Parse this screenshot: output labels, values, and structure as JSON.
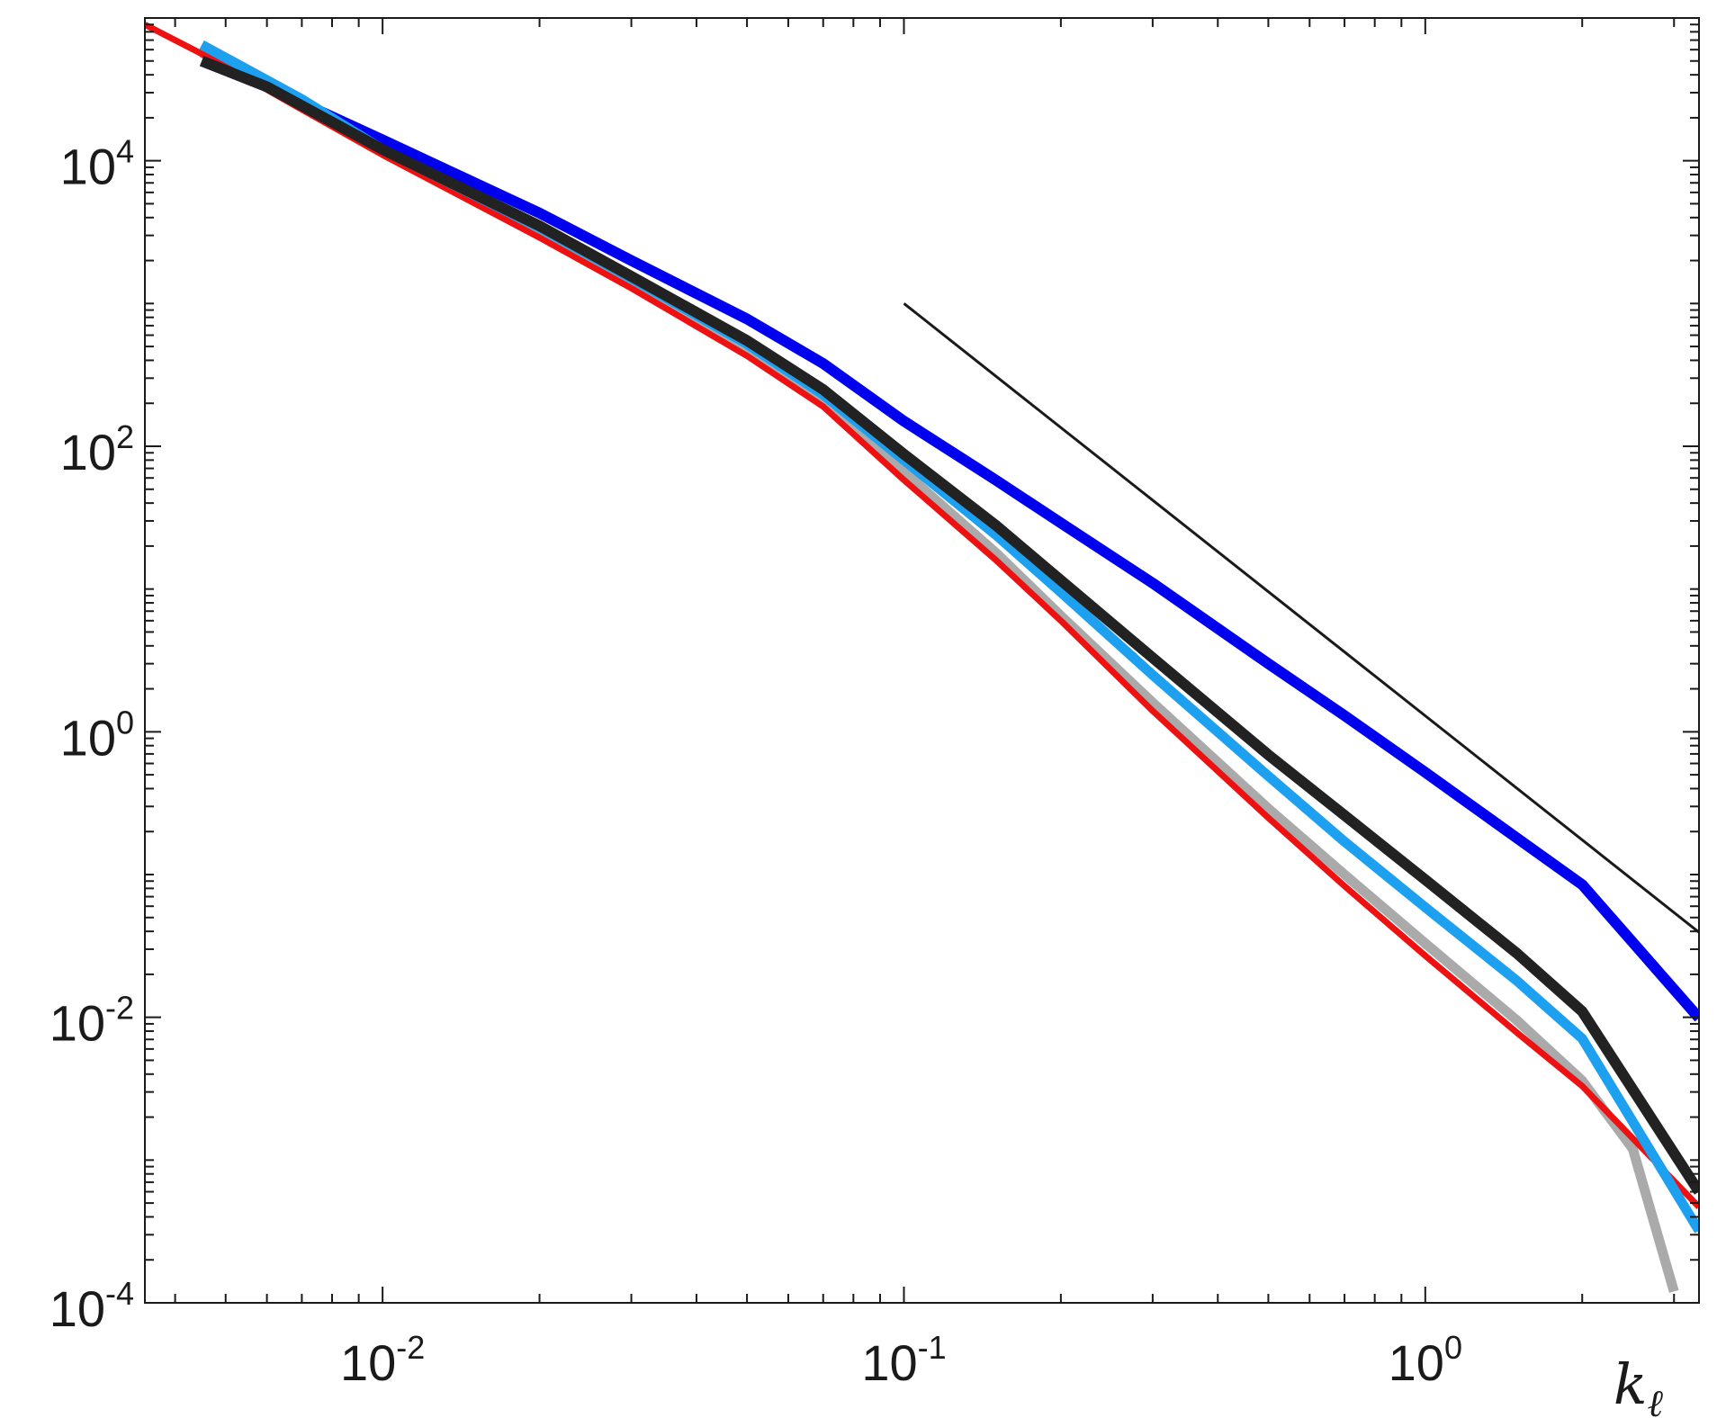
{
  "chart_data": {
    "type": "line",
    "xscale": "log",
    "yscale": "log",
    "xlim": [
      0.0035,
      3.35
    ],
    "ylim": [
      0.0001,
      100000
    ],
    "xlabel": "k_ℓ",
    "xlabel_main": "k",
    "xlabel_sub": "ℓ",
    "ylabel": "",
    "title": "",
    "grid": false,
    "legend": false,
    "x_ticks": [
      {
        "value": 0.01,
        "base": "10",
        "exp": "-2"
      },
      {
        "value": 0.1,
        "base": "10",
        "exp": "-1"
      },
      {
        "value": 1,
        "base": "10",
        "exp": "0"
      }
    ],
    "y_ticks": [
      {
        "value": 0.0001,
        "base": "10",
        "exp": "-4"
      },
      {
        "value": 0.01,
        "base": "10",
        "exp": "-2"
      },
      {
        "value": 1,
        "base": "10",
        "exp": "0"
      },
      {
        "value": 100,
        "base": "10",
        "exp": "2"
      },
      {
        "value": 10000,
        "base": "10",
        "exp": "4"
      }
    ],
    "series": [
      {
        "color": "#aaaaaa",
        "width": 11,
        "x": [
          0.0045,
          0.006,
          0.01,
          0.02,
          0.03,
          0.05,
          0.07,
          0.1,
          0.15,
          0.2,
          0.3,
          0.5,
          0.7,
          1.0,
          1.5,
          2.0,
          2.5,
          3.0
        ],
        "y": [
          57000,
          34000,
          12000,
          3300,
          1400,
          470,
          200,
          66,
          18,
          6.5,
          1.6,
          0.29,
          0.1,
          0.033,
          0.0095,
          0.0036,
          0.0012,
          0.00012
        ]
      },
      {
        "color": "#ee1111",
        "width": 7,
        "x": [
          0.0035,
          0.005,
          0.0067,
          0.01,
          0.02,
          0.03,
          0.05,
          0.07,
          0.1,
          0.15,
          0.2,
          0.3,
          0.5,
          0.7,
          1.0,
          1.5,
          2.0,
          3.35
        ],
        "y": [
          90000,
          46000,
          25000,
          11000,
          2900,
          1280,
          430,
          190,
          58,
          16,
          6,
          1.4,
          0.25,
          0.083,
          0.027,
          0.0078,
          0.0033,
          0.00047
        ]
      },
      {
        "color": "#0000ee",
        "width": 12,
        "x": [
          0.0045,
          0.006,
          0.01,
          0.02,
          0.03,
          0.05,
          0.07,
          0.1,
          0.15,
          0.2,
          0.3,
          0.5,
          0.7,
          1.0,
          1.5,
          2.0,
          3.35
        ],
        "y": [
          50000,
          33000,
          14000,
          4300,
          2000,
          780,
          380,
          150,
          58,
          29,
          11,
          3,
          1.3,
          0.52,
          0.18,
          0.085,
          0.0099
        ]
      },
      {
        "color": "#1ea0f0",
        "width": 11,
        "x": [
          0.0045,
          0.007,
          0.01,
          0.02,
          0.03,
          0.05,
          0.07,
          0.1,
          0.15,
          0.2,
          0.3,
          0.5,
          0.7,
          1.0,
          1.5,
          2.0,
          3.35
        ],
        "y": [
          65000,
          27000,
          12000,
          3400,
          1500,
          520,
          230,
          80,
          24,
          9.5,
          2.5,
          0.49,
          0.17,
          0.059,
          0.018,
          0.0071,
          0.00032
        ]
      },
      {
        "color": "#222222",
        "width": 12,
        "x": [
          0.0045,
          0.006,
          0.01,
          0.02,
          0.03,
          0.05,
          0.07,
          0.1,
          0.15,
          0.2,
          0.3,
          0.5,
          0.7,
          1.0,
          1.5,
          2.0,
          3.35
        ],
        "y": [
          50000,
          33000,
          12000,
          3500,
          1550,
          550,
          250,
          88,
          28,
          11.5,
          3.3,
          0.69,
          0.26,
          0.092,
          0.028,
          0.011,
          0.0006
        ]
      },
      {
        "color": "#1a1a1a",
        "width": 3,
        "x": [
          0.1,
          3.35
        ],
        "y": [
          1000,
          0.0394
        ]
      }
    ]
  }
}
